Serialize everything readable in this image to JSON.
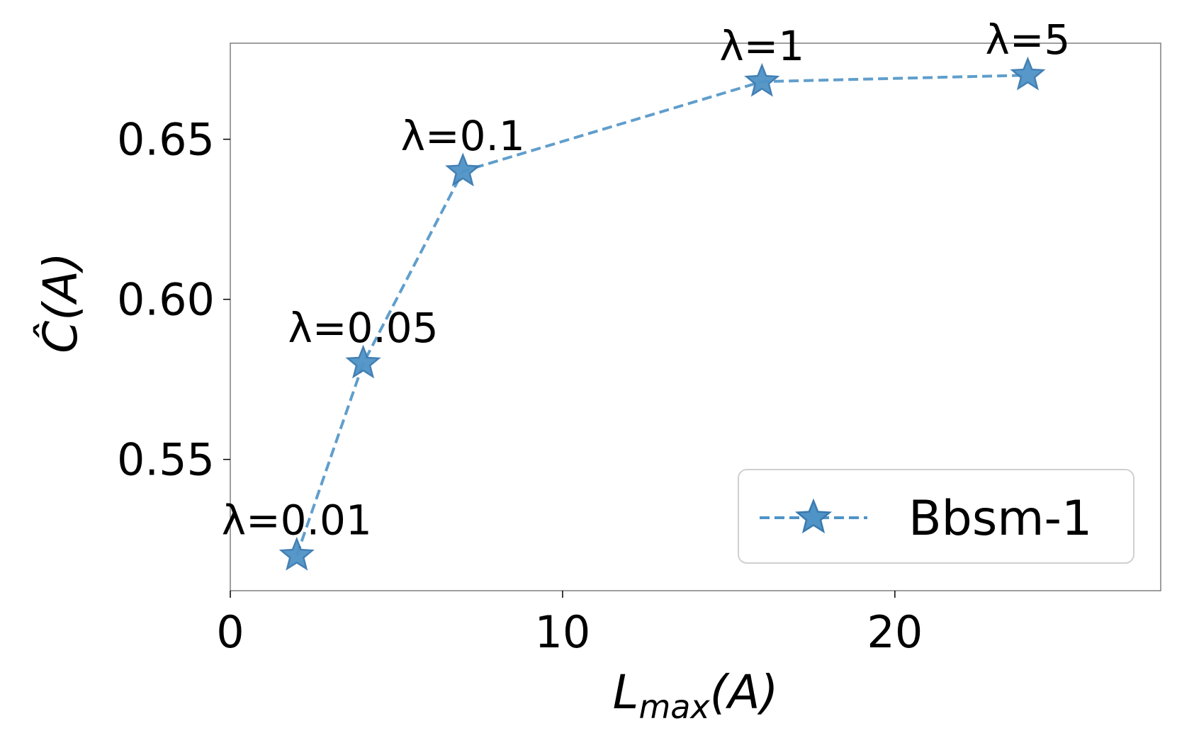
{
  "chart_data": {
    "type": "line",
    "title": "",
    "xlabel": "L_max(A)",
    "ylabel": "Ĉ(A)",
    "xlim": [
      0,
      28
    ],
    "ylim": [
      0.509,
      0.68
    ],
    "xticks": [
      0,
      10,
      20
    ],
    "xtick_labels": [
      "0",
      "10",
      "20"
    ],
    "yticks": [
      0.55,
      0.6,
      0.65
    ],
    "ytick_labels": [
      "0.55",
      "0.60",
      "0.65"
    ],
    "grid": false,
    "legend_position": "lower-right",
    "series": [
      {
        "name": "Bbsm-1",
        "color": "#4f93c7",
        "line_style": "dashed",
        "marker": "star",
        "x": [
          2,
          4,
          7,
          16,
          24
        ],
        "y": [
          0.52,
          0.58,
          0.64,
          0.668,
          0.67
        ],
        "labels": [
          "λ=0.01",
          "λ=0.05",
          "λ=0.1",
          "λ=1",
          "λ=5"
        ]
      }
    ]
  }
}
